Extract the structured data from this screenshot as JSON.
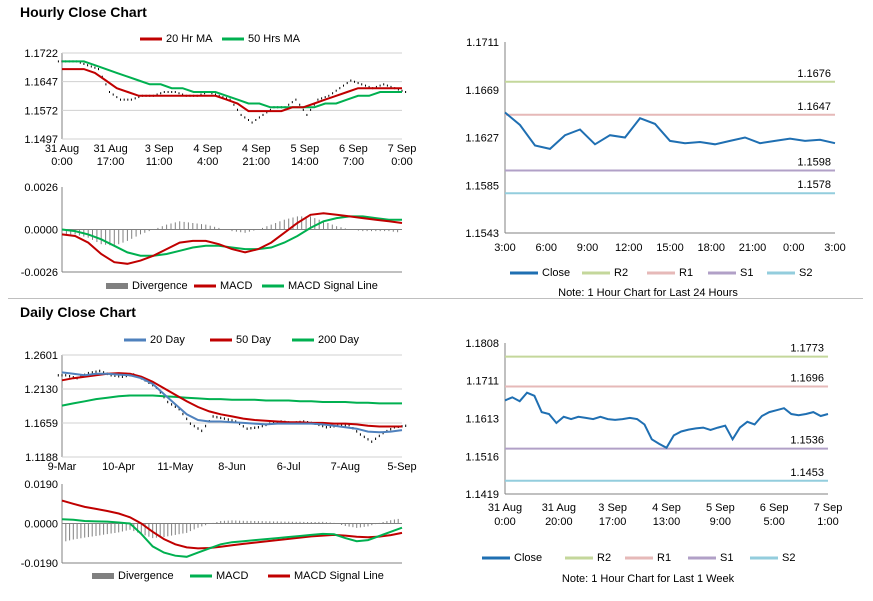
{
  "hourly": {
    "title": "Hourly Close Chart",
    "price": {
      "legend": [
        "20 Hr MA",
        "50 Hrs MA"
      ],
      "colors": {
        "ma20": "#c00000",
        "ma50": "#00b050",
        "bars": "#000000"
      },
      "yticks": [
        "1.1722",
        "1.1647",
        "1.1572",
        "1.1497"
      ],
      "ylim": [
        1.1497,
        1.1722
      ],
      "xticks": [
        [
          "31 Aug",
          "0:00"
        ],
        [
          "31 Aug",
          "17:00"
        ],
        [
          "3 Sep",
          "11:00"
        ],
        [
          "4 Sep",
          "4:00"
        ],
        [
          "4 Sep",
          "21:00"
        ],
        [
          "5 Sep",
          "14:00"
        ],
        [
          "6 Sep",
          "7:00"
        ],
        [
          "7 Sep",
          "0:00"
        ]
      ],
      "close": [
        1.17,
        1.17,
        1.169,
        1.168,
        1.162,
        1.16,
        1.16,
        1.161,
        1.161,
        1.162,
        1.162,
        1.161,
        1.161,
        1.162,
        1.161,
        1.16,
        1.156,
        1.154,
        1.156,
        1.158,
        1.158,
        1.16,
        1.156,
        1.16,
        1.161,
        1.163,
        1.165,
        1.164,
        1.163,
        1.164,
        1.163,
        1.162
      ],
      "ma20": [
        1.168,
        1.168,
        1.168,
        1.167,
        1.165,
        1.163,
        1.162,
        1.161,
        1.161,
        1.161,
        1.161,
        1.161,
        1.161,
        1.161,
        1.161,
        1.16,
        1.159,
        1.157,
        1.157,
        1.157,
        1.157,
        1.158,
        1.158,
        1.159,
        1.16,
        1.161,
        1.162,
        1.163,
        1.163,
        1.163,
        1.163,
        1.163
      ],
      "ma50": [
        1.17,
        1.17,
        1.17,
        1.169,
        1.168,
        1.167,
        1.166,
        1.165,
        1.164,
        1.164,
        1.163,
        1.163,
        1.162,
        1.162,
        1.162,
        1.161,
        1.16,
        1.159,
        1.159,
        1.158,
        1.158,
        1.158,
        1.158,
        1.158,
        1.159,
        1.159,
        1.16,
        1.161,
        1.161,
        1.162,
        1.162,
        1.162
      ]
    },
    "macd": {
      "legend": [
        "Divergence",
        "MACD",
        "MACD Signal Line"
      ],
      "colors": {
        "macd": "#c00000",
        "signal": "#00b050",
        "hist": "#808080"
      },
      "yticks": [
        "0.0026",
        "0.0000",
        "-0.0026"
      ],
      "ylim": [
        -0.0026,
        0.0026
      ],
      "macd": [
        -0.0003,
        -0.0004,
        -0.0008,
        -0.0015,
        -0.002,
        -0.0021,
        -0.0019,
        -0.0016,
        -0.0012,
        -0.0008,
        -0.0007,
        -0.0007,
        -0.0009,
        -0.0012,
        -0.0014,
        -0.0012,
        -0.0008,
        -0.0002,
        0.0004,
        0.0009,
        0.001,
        0.0009,
        0.0008,
        0.0007,
        0.0006,
        0.0005,
        0.0004
      ],
      "signal": [
        0.0,
        -0.0001,
        -0.0003,
        -0.0006,
        -0.001,
        -0.0014,
        -0.0016,
        -0.0016,
        -0.0015,
        -0.0013,
        -0.0011,
        -0.001,
        -0.001,
        -0.0011,
        -0.0012,
        -0.0012,
        -0.0011,
        -0.0008,
        -0.0004,
        0.0001,
        0.0005,
        0.0007,
        0.0008,
        0.0008,
        0.0007,
        0.0006,
        0.0006
      ]
    },
    "levels": {
      "yticks": [
        "1.1711",
        "1.1669",
        "1.1627",
        "1.1585",
        "1.1543"
      ],
      "ylim": [
        1.1543,
        1.1711
      ],
      "xticks": [
        "3:00",
        "6:00",
        "9:00",
        "12:00",
        "15:00",
        "18:00",
        "21:00",
        "0:00",
        "3:00"
      ],
      "close": [
        1.1649,
        1.1638,
        1.162,
        1.1617,
        1.1629,
        1.1634,
        1.1621,
        1.1629,
        1.1627,
        1.1644,
        1.1639,
        1.1624,
        1.1622,
        1.1623,
        1.1621,
        1.1624,
        1.1627,
        1.1622,
        1.1624,
        1.1626,
        1.1624,
        1.1625,
        1.1622
      ],
      "lines": [
        {
          "name": "R2",
          "value": 1.1676,
          "label": "1.1676",
          "color": "#c4d79b"
        },
        {
          "name": "R1",
          "value": 1.1647,
          "label": "1.1647",
          "color": "#e6b9b8"
        },
        {
          "name": "S1",
          "value": 1.1598,
          "label": "1.1598",
          "color": "#b1a0c7"
        },
        {
          "name": "S2",
          "value": 1.1578,
          "label": "1.1578",
          "color": "#93cddd"
        }
      ],
      "close_color": "#1f6fb2",
      "legend": [
        "Close",
        "R2",
        "R1",
        "S1",
        "S2"
      ],
      "note": "Note: 1 Hour Chart for Last 24 Hours"
    }
  },
  "daily": {
    "title": "Daily Close Chart",
    "price": {
      "legend": [
        "20 Day",
        "50 Day",
        "200 Day"
      ],
      "colors": {
        "ma20": "#4f81bd",
        "ma50": "#c00000",
        "ma200": "#00b050",
        "bars": "#000000"
      },
      "yticks": [
        "1.2601",
        "1.2130",
        "1.1659",
        "1.1188"
      ],
      "ylim": [
        1.1188,
        1.2601
      ],
      "xticks": [
        "9-Mar",
        "10-Apr",
        "11-May",
        "8-Jun",
        "6-Jul",
        "7-Aug",
        "5-Sep"
      ],
      "close": [
        1.232,
        1.228,
        1.235,
        1.238,
        1.232,
        1.23,
        1.233,
        1.225,
        1.215,
        1.195,
        1.185,
        1.165,
        1.155,
        1.175,
        1.172,
        1.168,
        1.158,
        1.16,
        1.165,
        1.168,
        1.166,
        1.168,
        1.165,
        1.16,
        1.162,
        1.163,
        1.15,
        1.14,
        1.152,
        1.16,
        1.162
      ],
      "ma20": [
        1.236,
        1.234,
        1.232,
        1.234,
        1.234,
        1.233,
        1.232,
        1.228,
        1.22,
        1.206,
        1.192,
        1.178,
        1.17,
        1.168,
        1.168,
        1.167,
        1.166,
        1.165,
        1.164,
        1.165,
        1.165,
        1.165,
        1.165,
        1.164,
        1.162,
        1.16,
        1.158,
        1.154,
        1.153,
        1.154,
        1.156
      ],
      "ma50": [
        1.225,
        1.228,
        1.23,
        1.232,
        1.234,
        1.235,
        1.234,
        1.23,
        1.223,
        1.214,
        1.205,
        1.196,
        1.188,
        1.182,
        1.178,
        1.175,
        1.172,
        1.17,
        1.169,
        1.168,
        1.167,
        1.167,
        1.166,
        1.166,
        1.165,
        1.165,
        1.164,
        1.162,
        1.161,
        1.161,
        1.161
      ],
      "ma200": [
        1.19,
        1.193,
        1.196,
        1.199,
        1.201,
        1.203,
        1.204,
        1.204,
        1.204,
        1.203,
        1.202,
        1.201,
        1.2,
        1.199,
        1.199,
        1.198,
        1.198,
        1.198,
        1.197,
        1.197,
        1.197,
        1.196,
        1.196,
        1.195,
        1.195,
        1.195,
        1.194,
        1.194,
        1.193,
        1.193,
        1.193
      ]
    },
    "macd": {
      "legend": [
        "Divergence",
        "MACD",
        "MACD Signal Line"
      ],
      "colors": {
        "macd": "#00b050",
        "signal": "#c00000",
        "hist": "#808080"
      },
      "yticks": [
        "0.0190",
        "0.0000",
        "-0.0190"
      ],
      "ylim": [
        -0.019,
        0.019
      ],
      "macd": [
        0.002,
        0.0018,
        0.0012,
        0.001,
        0.0009,
        0.0005,
        0.0,
        -0.005,
        -0.011,
        -0.014,
        -0.0155,
        -0.016,
        -0.014,
        -0.012,
        -0.01,
        -0.009,
        -0.0085,
        -0.008,
        -0.0075,
        -0.007,
        -0.0065,
        -0.006,
        -0.0055,
        -0.005,
        -0.0052,
        -0.007,
        -0.0085,
        -0.008,
        -0.006,
        -0.004,
        -0.002
      ],
      "signal": [
        0.011,
        0.0095,
        0.008,
        0.007,
        0.006,
        0.0048,
        0.003,
        0.0,
        -0.004,
        -0.0075,
        -0.01,
        -0.0115,
        -0.012,
        -0.0118,
        -0.0112,
        -0.0105,
        -0.0098,
        -0.0092,
        -0.0086,
        -0.008,
        -0.0074,
        -0.0068,
        -0.0062,
        -0.0058,
        -0.0055,
        -0.0058,
        -0.0064,
        -0.0066,
        -0.0063,
        -0.0056,
        -0.0045
      ]
    },
    "levels": {
      "yticks": [
        "1.1808",
        "1.1711",
        "1.1613",
        "1.1516",
        "1.1419"
      ],
      "ylim": [
        1.1419,
        1.1808
      ],
      "xticks": [
        [
          "31 Aug",
          "0:00"
        ],
        [
          "31 Aug",
          "20:00"
        ],
        [
          "3 Sep",
          "17:00"
        ],
        [
          "4 Sep",
          "13:00"
        ],
        [
          "5 Sep",
          "9:00"
        ],
        [
          "6 Sep",
          "5:00"
        ],
        [
          "7 Sep",
          "1:00"
        ]
      ],
      "close": [
        1.166,
        1.1668,
        1.1658,
        1.168,
        1.1672,
        1.163,
        1.1625,
        1.1602,
        1.1618,
        1.1612,
        1.1618,
        1.1615,
        1.1612,
        1.1618,
        1.1612,
        1.161,
        1.1612,
        1.1615,
        1.1612,
        1.1598,
        1.156,
        1.1548,
        1.1538,
        1.157,
        1.158,
        1.1585,
        1.1588,
        1.159,
        1.1584,
        1.159,
        1.1595,
        1.156,
        1.159,
        1.1605,
        1.1598,
        1.162,
        1.163,
        1.1635,
        1.164,
        1.1625,
        1.1622,
        1.1625,
        1.163,
        1.162,
        1.1625
      ],
      "lines": [
        {
          "name": "R2",
          "value": 1.1773,
          "label": "1.1773",
          "color": "#c4d79b"
        },
        {
          "name": "R1",
          "value": 1.1696,
          "label": "1.1696",
          "color": "#e6b9b8"
        },
        {
          "name": "S1",
          "value": 1.1536,
          "label": "1.1536",
          "color": "#b1a0c7"
        },
        {
          "name": "S2",
          "value": 1.1453,
          "label": "1.1453",
          "color": "#93cddd"
        }
      ],
      "close_color": "#1f6fb2",
      "legend": [
        "Close",
        "R2",
        "R1",
        "S1",
        "S2"
      ],
      "note": "Note: 1 Hour Chart for Last 1 Week"
    }
  }
}
